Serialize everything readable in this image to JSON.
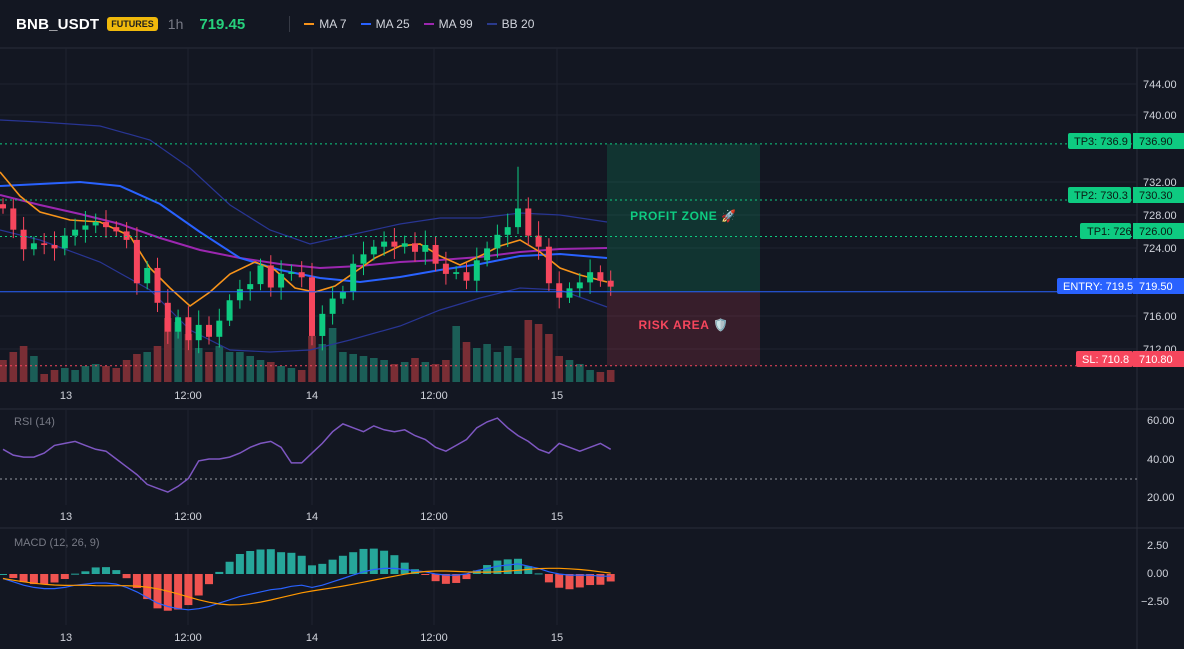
{
  "header": {
    "symbol": "BNB_USDT",
    "badge": "FUTURES",
    "interval": "1h",
    "last_price": "719.45",
    "legend": [
      {
        "label": "MA 7",
        "color": "#f7931a"
      },
      {
        "label": "MA 25",
        "color": "#2962ff"
      },
      {
        "label": "MA 99",
        "color": "#9c27b0"
      },
      {
        "label": "BB 20",
        "color": "#2a3a8c"
      }
    ]
  },
  "colors": {
    "up": "#26a69a",
    "up_bright": "#0ecb81",
    "down": "#f6465d",
    "vol_up": "#1b5e57",
    "vol_down": "#7a2e35",
    "entry": "#2962ff",
    "tp": "#0ecb81",
    "sl": "#f6465d"
  },
  "main_pane": {
    "price_ticks": [
      "744.00",
      "740.00",
      "732.00",
      "728.00",
      "724.00",
      "716.00",
      "712.00"
    ],
    "levels": [
      {
        "name": "tp3",
        "label": "TP3: 736.9",
        "price_label": "736.90",
        "price": 736.9
      },
      {
        "name": "tp2",
        "label": "TP2: 730.3",
        "price_label": "730.30",
        "price": 730.3
      },
      {
        "name": "tp1",
        "label": "TP1: 726",
        "price_label": "726.00",
        "price": 726.0
      },
      {
        "name": "entry",
        "label": "ENTRY: 719.5",
        "price_label": "719.50",
        "price": 719.5
      },
      {
        "name": "sl",
        "label": "SL: 710.8",
        "price_label": "710.80",
        "price": 710.8
      }
    ],
    "profit_zone_label": "PROFIT ZONE 🚀",
    "risk_area_label": "RISK AREA 🛡️"
  },
  "time_labels": [
    "13",
    "12:00",
    "14",
    "12:00",
    "15"
  ],
  "rsi_pane": {
    "title": "RSI (14)",
    "ticks": [
      "60.00",
      "40.00",
      "20.00"
    ]
  },
  "macd_pane": {
    "title": "MACD (12, 26, 9)",
    "ticks": [
      "2.50",
      "0.00",
      "−2.50"
    ]
  }
}
